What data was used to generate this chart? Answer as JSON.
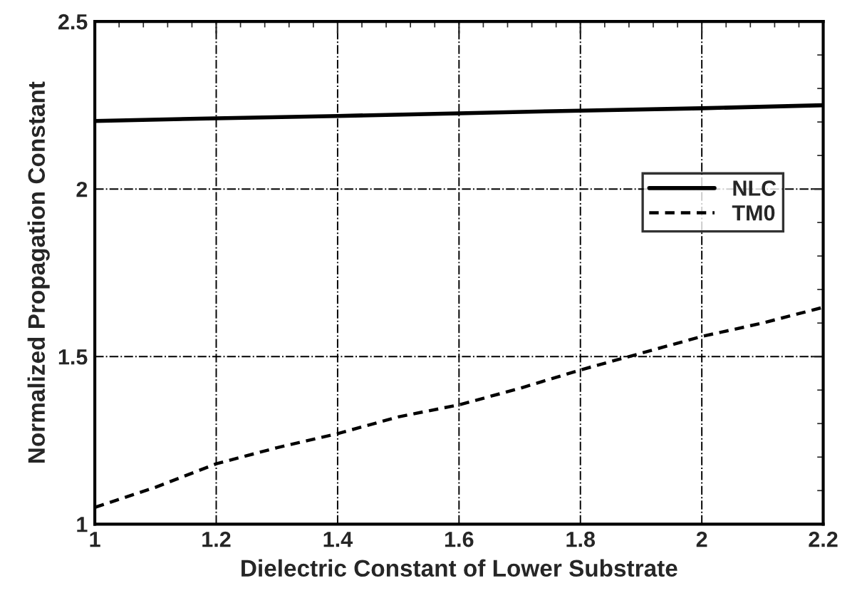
{
  "chart_data": {
    "type": "line",
    "xlabel": "Dielectric Constant of Lower Substrate",
    "ylabel": "Normalized Propagation Constant",
    "xlim": [
      1,
      2.2
    ],
    "ylim": [
      1,
      2.5
    ],
    "xticks": [
      1,
      1.2,
      1.4,
      1.6,
      1.8,
      2,
      2.2
    ],
    "yticks": [
      1,
      1.5,
      2,
      2.5
    ],
    "grid": true,
    "legend": "right",
    "series": [
      {
        "name": "NLC",
        "color": "#000000",
        "line_style": "solid",
        "x": [
          1,
          1.2,
          1.4,
          1.6,
          1.8,
          2,
          2.2
        ],
        "values": [
          2.203,
          2.211,
          2.218,
          2.226,
          2.234,
          2.241,
          2.25
        ]
      },
      {
        "name": "TM0",
        "color": "#000000",
        "line_style": "dashed",
        "x": [
          1,
          1.1,
          1.2,
          1.3,
          1.4,
          1.5,
          1.6,
          1.7,
          1.8,
          1.9,
          2,
          2.1,
          2.2
        ],
        "values": [
          1.05,
          1.11,
          1.18,
          1.228,
          1.27,
          1.32,
          1.356,
          1.405,
          1.46,
          1.51,
          1.56,
          1.6,
          1.647
        ]
      }
    ]
  }
}
